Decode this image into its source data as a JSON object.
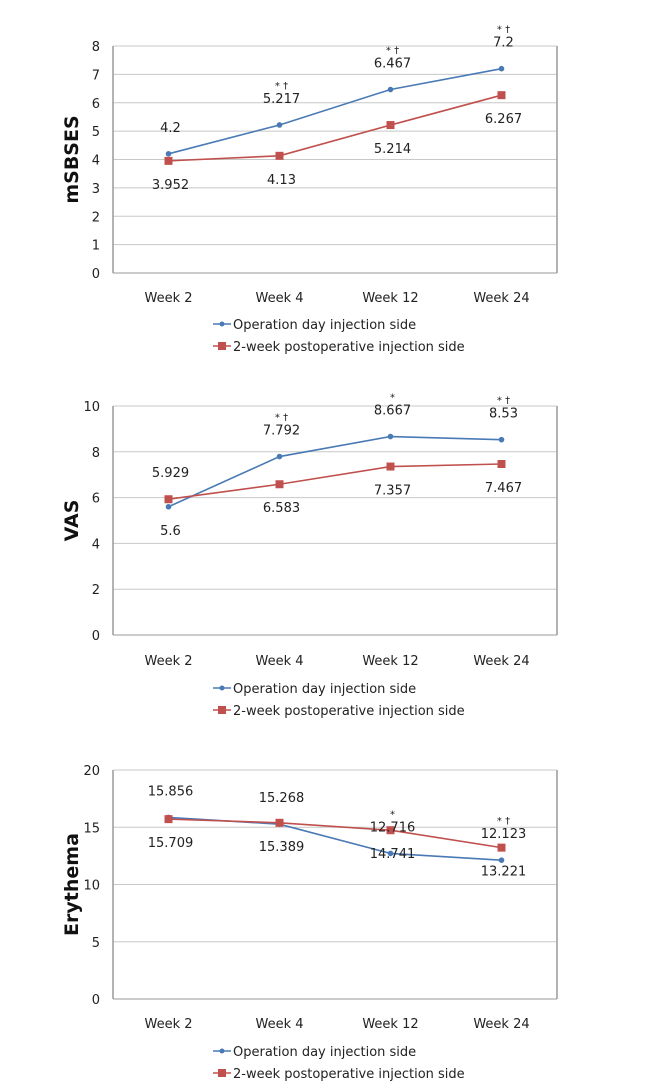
{
  "colors": {
    "series_blue": "#4a7ab5",
    "series_red": "#c0504d",
    "grid": "#c8c8c8",
    "axis": "#9a9a9a"
  },
  "legend": {
    "series": [
      {
        "name": "Operation day injection side",
        "marker": "diamond",
        "color": "#4a7ab5"
      },
      {
        "name": "2-week postoperative injection side",
        "marker": "square",
        "color": "#c0504d"
      }
    ]
  },
  "chart_data": [
    {
      "type": "line",
      "title": "",
      "xlabel": "",
      "ylabel": "mSBSES",
      "categories": [
        "Week 2",
        "Week 4",
        "Week 12",
        "Week 24"
      ],
      "ylim": [
        0,
        8
      ],
      "yticks": [
        0,
        1,
        2,
        3,
        4,
        5,
        6,
        7,
        8
      ],
      "grid": true,
      "legend_position": "bottom",
      "series": [
        {
          "name": "Operation day injection side",
          "values": [
            4.2,
            5.217,
            6.467,
            7.2
          ],
          "labels": [
            "4.2",
            "5.217",
            "6.467",
            "7.2"
          ],
          "annotations": [
            "",
            "* †",
            "* †",
            "* †"
          ]
        },
        {
          "name": "2-week postoperative injection side",
          "values": [
            3.952,
            4.13,
            5.214,
            6.267
          ],
          "labels": [
            "3.952",
            "4.13",
            "5.214",
            "6.267"
          ],
          "annotations": [
            "",
            "",
            "",
            ""
          ]
        }
      ],
      "label_positions": {
        "blue": [
          "above",
          "above",
          "above",
          "above"
        ],
        "red": [
          "below",
          "below",
          "below",
          "below"
        ]
      }
    },
    {
      "type": "line",
      "title": "",
      "xlabel": "",
      "ylabel": "VAS",
      "categories": [
        "Week 2",
        "Week 4",
        "Week 12",
        "Week 24"
      ],
      "ylim": [
        0,
        10
      ],
      "yticks": [
        0,
        2,
        4,
        6,
        8,
        10
      ],
      "grid": true,
      "legend_position": "bottom",
      "series": [
        {
          "name": "Operation day injection side",
          "values": [
            5.6,
            7.792,
            8.667,
            8.53
          ],
          "labels": [
            "5.6",
            "7.792",
            "8.667",
            "8.53"
          ],
          "annotations": [
            "",
            "* †",
            "*",
            "* †"
          ]
        },
        {
          "name": "2-week postoperative injection side",
          "values": [
            5.929,
            6.583,
            7.357,
            7.467
          ],
          "labels": [
            "5.929",
            "6.583",
            "7.357",
            "7.467"
          ],
          "annotations": [
            "",
            "",
            "",
            ""
          ]
        }
      ],
      "label_positions": {
        "blue": [
          "below",
          "above",
          "above",
          "above"
        ],
        "red": [
          "above",
          "below",
          "below",
          "below"
        ]
      }
    },
    {
      "type": "line",
      "title": "",
      "xlabel": "",
      "ylabel": "Erythema",
      "categories": [
        "Week 2",
        "Week 4",
        "Week 12",
        "Week 24"
      ],
      "ylim": [
        0,
        20
      ],
      "yticks": [
        0,
        5,
        10,
        15,
        20
      ],
      "grid": true,
      "legend_position": "bottom",
      "series": [
        {
          "name": "Operation day injection side",
          "values": [
            15.856,
            15.268,
            12.716,
            12.123
          ],
          "labels": [
            "15.856",
            "15.268",
            "12.716",
            "12.123"
          ],
          "annotations": [
            "",
            "",
            "*",
            "* †"
          ]
        },
        {
          "name": "2-week postoperative injection side",
          "values": [
            15.709,
            15.389,
            14.741,
            13.221
          ],
          "labels": [
            "15.709",
            "15.389",
            "14.741",
            "13.221"
          ],
          "annotations": [
            "",
            "",
            "",
            ""
          ]
        }
      ],
      "label_positions": {
        "blue": [
          "above",
          "above",
          "above",
          "above"
        ],
        "red": [
          "below",
          "below",
          "below",
          "below"
        ]
      }
    }
  ]
}
